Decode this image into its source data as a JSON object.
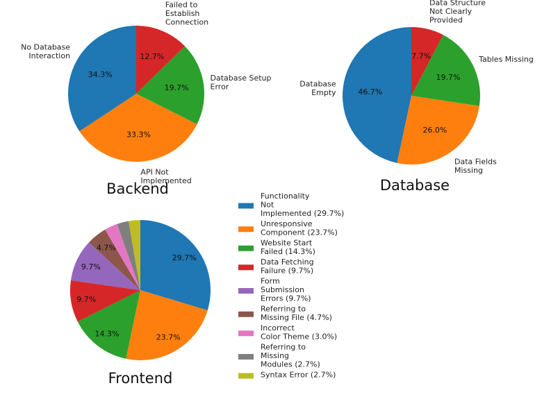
{
  "chart_data": [
    {
      "type": "pie",
      "title": "Backend",
      "labels": [
        [
          "Failed to",
          "Establish",
          "Connection"
        ],
        [
          "Database Setup",
          "Error"
        ],
        [
          "API Not",
          "Implemented"
        ],
        [
          "No Database",
          "Interaction"
        ]
      ],
      "values": [
        12.7,
        19.7,
        33.3,
        34.3
      ],
      "value_labels": [
        "12.7%",
        "19.7%",
        "33.3%",
        "34.3%"
      ],
      "colors": [
        "#d62728",
        "#2ca02c",
        "#ff7f0e",
        "#1f77b4"
      ]
    },
    {
      "type": "pie",
      "title": "Database",
      "labels": [
        [
          "Data Structure",
          "Not Clearly",
          "Provided"
        ],
        [
          "Tables Missing"
        ],
        [
          "Data Fields",
          "Missing"
        ],
        [
          "Database",
          "Empty"
        ]
      ],
      "values": [
        7.7,
        19.7,
        26.0,
        46.7
      ],
      "value_labels": [
        "7.7%",
        "19.7%",
        "26.0%",
        "46.7%"
      ],
      "colors": [
        "#d62728",
        "#2ca02c",
        "#ff7f0e",
        "#1f77b4"
      ]
    },
    {
      "type": "pie",
      "title": "Frontend",
      "labels": [
        "Functionality Not Implemented",
        "Unresponsive Component",
        "Website Start Failed",
        "Data Fetching Failure",
        "Form Submission Errors",
        "Referring to Missing File",
        "Incorrect Color Theme",
        "Referring to Missing Modules",
        "Syntax Error"
      ],
      "values": [
        29.7,
        23.7,
        14.3,
        9.7,
        9.7,
        4.7,
        3.0,
        2.7,
        2.7
      ],
      "value_labels": [
        "29.7%",
        "23.7%",
        "14.3%",
        "9.7%",
        "9.7%",
        "4.7%",
        "",
        "",
        ""
      ],
      "colors": [
        "#1f77b4",
        "#ff7f0e",
        "#2ca02c",
        "#d62728",
        "#9467bd",
        "#8c564b",
        "#e377c2",
        "#7f7f7f",
        "#bcbd22"
      ],
      "legend": [
        [
          "Functionality",
          "Not",
          "Implemented (29.7%)"
        ],
        [
          "Unresponsive",
          "Component (23.7%)"
        ],
        [
          "Website Start",
          "Failed (14.3%)"
        ],
        [
          "Data Fetching",
          "Failure (9.7%)"
        ],
        [
          "Form",
          "Submission",
          "Errors (9.7%)"
        ],
        [
          "Referring to",
          "Missing File (4.7%)"
        ],
        [
          "Incorrect",
          "Color Theme (3.0%)"
        ],
        [
          "Referring to",
          "Missing",
          "Modules (2.7%)"
        ],
        [
          "Syntax Error (2.7%)"
        ]
      ]
    }
  ]
}
